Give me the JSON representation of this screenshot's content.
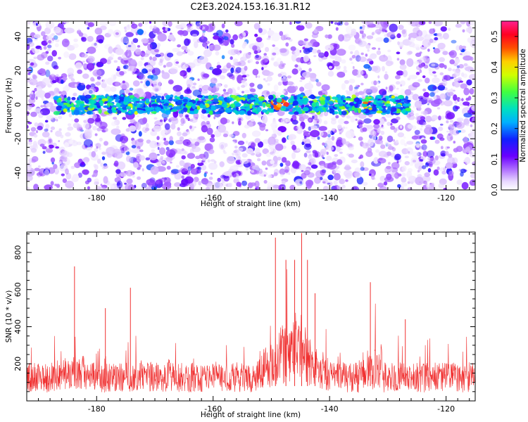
{
  "figure": {
    "title": "C2E3.2024.153.16.31.R12"
  },
  "chart_data": [
    {
      "type": "heatmap",
      "xlabel": "Height of straight line (km)",
      "ylabel": "Frequency (Hz)",
      "xlim": [
        -192,
        -115
      ],
      "ylim": [
        -50,
        49
      ],
      "x_ticks": [
        -180,
        -160,
        -140,
        -120
      ],
      "x_tick_labels": [
        "-180",
        "-160",
        "-140",
        "-120"
      ],
      "y_ticks": [
        -40,
        -20,
        0,
        20,
        40
      ],
      "y_tick_labels": [
        "-40",
        "-20",
        "0",
        "20",
        "40"
      ],
      "colorbar": {
        "label": "Normalized spectral amplitude",
        "range": [
          0.0,
          0.55
        ],
        "ticks": [
          0.0,
          0.1,
          0.2,
          0.3,
          0.4,
          0.5
        ],
        "tick_labels": [
          "0.0",
          "0.1",
          "0.2",
          "0.3",
          "0.4",
          "0.5"
        ],
        "colormap": "rainbow-white"
      },
      "signal_band": {
        "center_frequency_hz": 0,
        "half_width_hz": 5,
        "x_start": -187,
        "x_end": -126,
        "peak_amplitude": 0.5,
        "peak_locations": [
          -149.5,
          -148,
          -133.5
        ]
      },
      "background_noise_amplitude": 0.12,
      "grid": false
    },
    {
      "type": "line",
      "xlabel": "Height of straight line (km)",
      "ylabel": "SNR (10 * v/v)",
      "xlim": [
        -192,
        -115
      ],
      "ylim": [
        0,
        910
      ],
      "x_ticks": [
        -180,
        -160,
        -140,
        -120
      ],
      "x_tick_labels": [
        "-180",
        "-160",
        "-140",
        "-120"
      ],
      "y_ticks": [
        200,
        400,
        600,
        800
      ],
      "y_tick_labels": [
        "200",
        "400",
        "600",
        "800"
      ],
      "line_color": "#f03030",
      "baseline_snr": 130,
      "notable_peaks": [
        {
          "x": -183.8,
          "y": 725
        },
        {
          "x": -178.5,
          "y": 500
        },
        {
          "x": -174.2,
          "y": 610
        },
        {
          "x": -149.3,
          "y": 880
        },
        {
          "x": -147.5,
          "y": 760
        },
        {
          "x": -146.0,
          "y": 760
        },
        {
          "x": -144.8,
          "y": 905
        },
        {
          "x": -143.8,
          "y": 760
        },
        {
          "x": -142.5,
          "y": 580
        },
        {
          "x": -133.0,
          "y": 640
        },
        {
          "x": -127.0,
          "y": 440
        }
      ],
      "grid": false
    }
  ]
}
